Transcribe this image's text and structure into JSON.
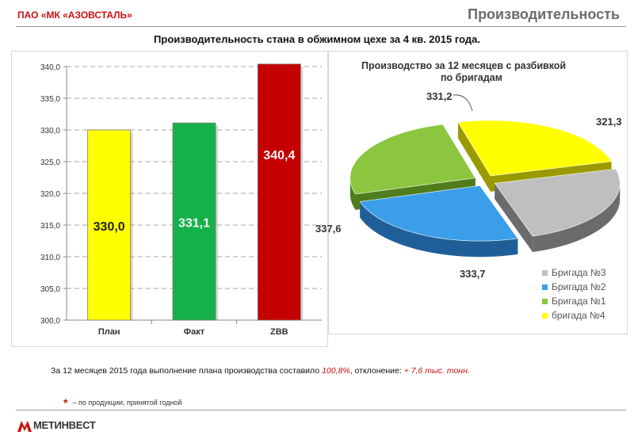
{
  "header": {
    "company": "ПАО «МК «АЗОВСТАЛЬ»",
    "page_title": "Производительность"
  },
  "chart_title": "Производительность стана в обжимном цехе за 4 кв. 2015 года.",
  "colors": {
    "red": "#cc1111",
    "plan": "#ffff00",
    "fact": "#14b14a",
    "zbb": "#c40000",
    "brigade3": "#bfbfbf",
    "brigade2": "#3b9ee8",
    "brigade1": "#8cc63f",
    "brigade4": "#ffff00"
  },
  "chart_data": [
    {
      "type": "bar",
      "categories": [
        "План",
        "Факт",
        "ZBB"
      ],
      "values": [
        330.0,
        331.1,
        340.4
      ],
      "data_labels": [
        "330,0",
        "331,1",
        "340,4"
      ],
      "ylim": [
        300,
        340
      ],
      "yticks": [
        "300,0",
        "305,0",
        "310,0",
        "315,0",
        "320,0",
        "325,0",
        "330,0",
        "335,0",
        "340,0"
      ],
      "grid": true
    },
    {
      "type": "pie",
      "title_lines": [
        "Производство за 12 месяцев с разбивкой",
        "по бригадам"
      ],
      "slices": [
        {
          "name": "Бригада №3",
          "value": 321.3,
          "label": "321,3"
        },
        {
          "name": "Бригада №2",
          "value": 333.7,
          "label": "333,7"
        },
        {
          "name": "Бригада №1",
          "value": 337.6,
          "label": "337,6"
        },
        {
          "name": "бригада №4",
          "value": 331.2,
          "label": "331,2"
        }
      ],
      "legend": "bottom-right",
      "style": "3d-exploded"
    }
  ],
  "summary": {
    "prefix": "За 12 месяцев 2015 года выполнение плана производства составило ",
    "percent": "100,8%",
    "middle": ", отклонение: ",
    "deviation": "+ 7,6 тыс. тонн."
  },
  "footnote": {
    "star": "*",
    "text": "– по продукции, принятой годной"
  },
  "logo_text": "МЕТИНВЕСТ"
}
